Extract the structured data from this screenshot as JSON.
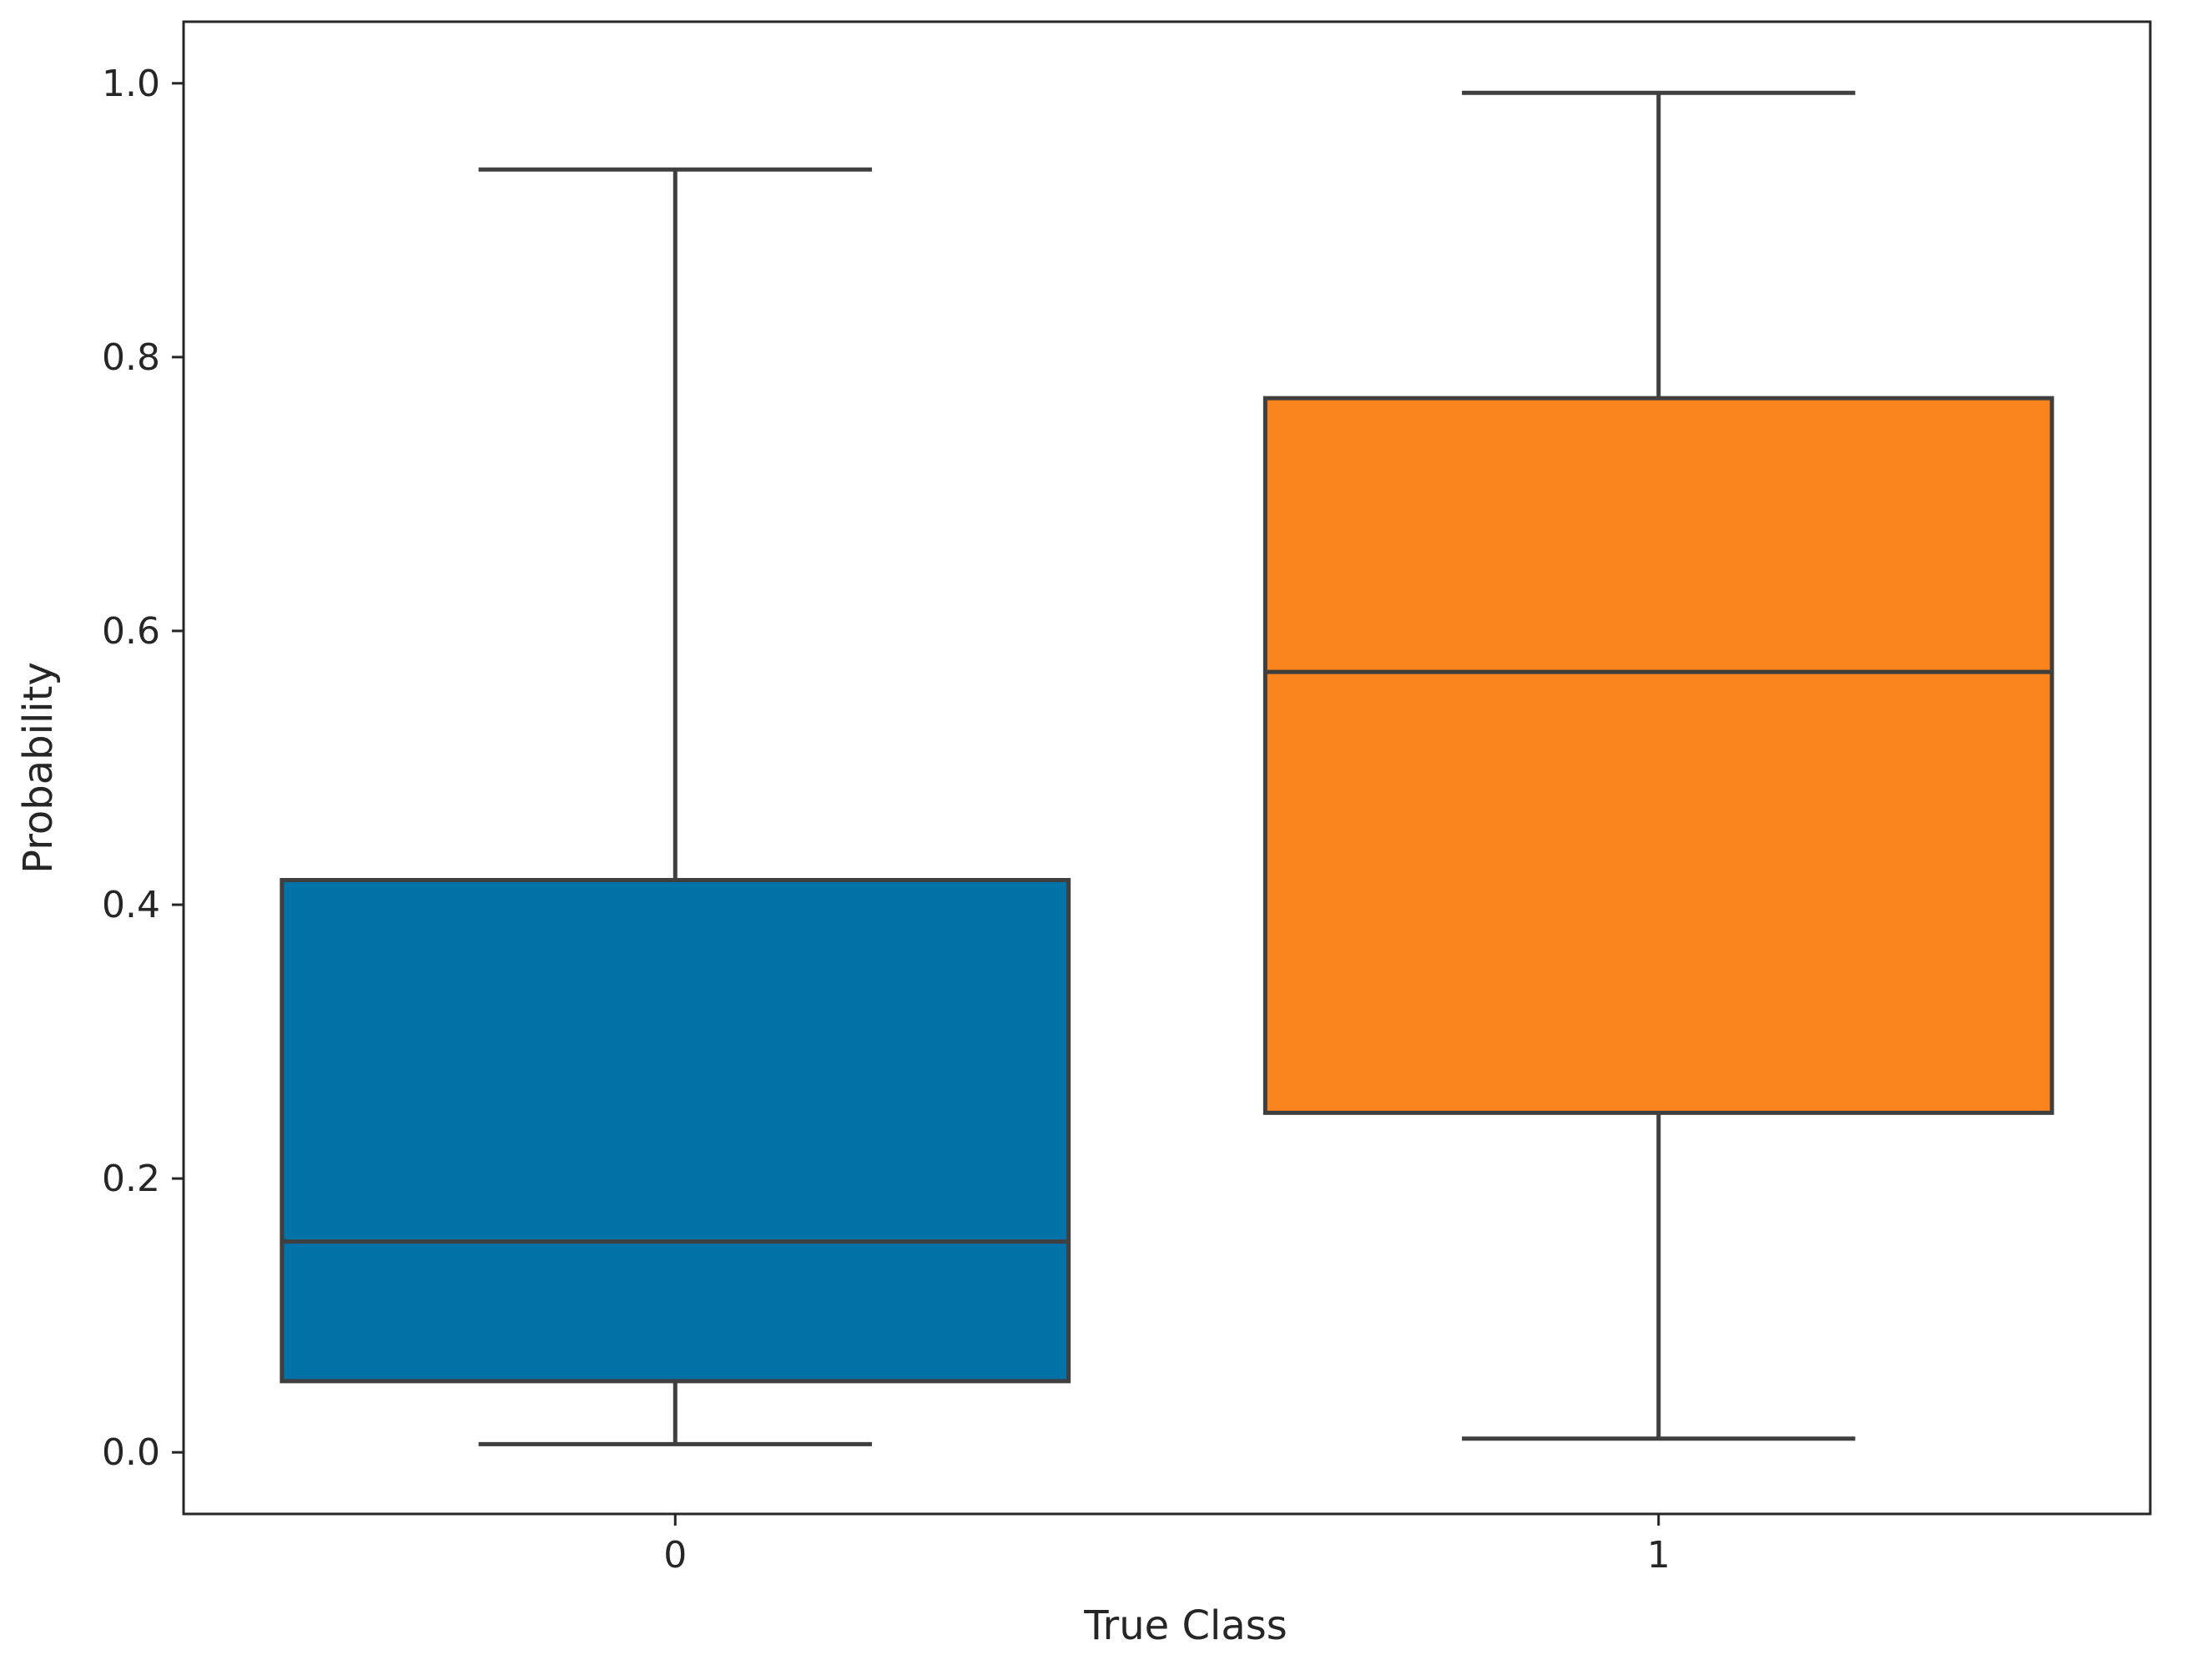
{
  "chart_data": {
    "type": "box",
    "title": "",
    "xlabel": "True Class",
    "ylabel": "Probability",
    "ylim": [
      -0.045,
      1.045
    ],
    "yticks": [
      0.0,
      0.2,
      0.4,
      0.6,
      0.8,
      1.0
    ],
    "ytick_labels": [
      "0.0",
      "0.2",
      "0.4",
      "0.6",
      "0.8",
      "1.0"
    ],
    "grid": false,
    "legend": null,
    "categories": [
      "0",
      "1"
    ],
    "boxes": [
      {
        "category": "0",
        "min": 0.006,
        "q1": 0.052,
        "median": 0.154,
        "q3": 0.418,
        "max": 0.937,
        "color": "#0072a8"
      },
      {
        "category": "1",
        "min": 0.01,
        "q1": 0.248,
        "median": 0.57,
        "q3": 0.77,
        "max": 0.993,
        "color": "#fb841d"
      }
    ],
    "line_color": "#3f3f3f"
  }
}
